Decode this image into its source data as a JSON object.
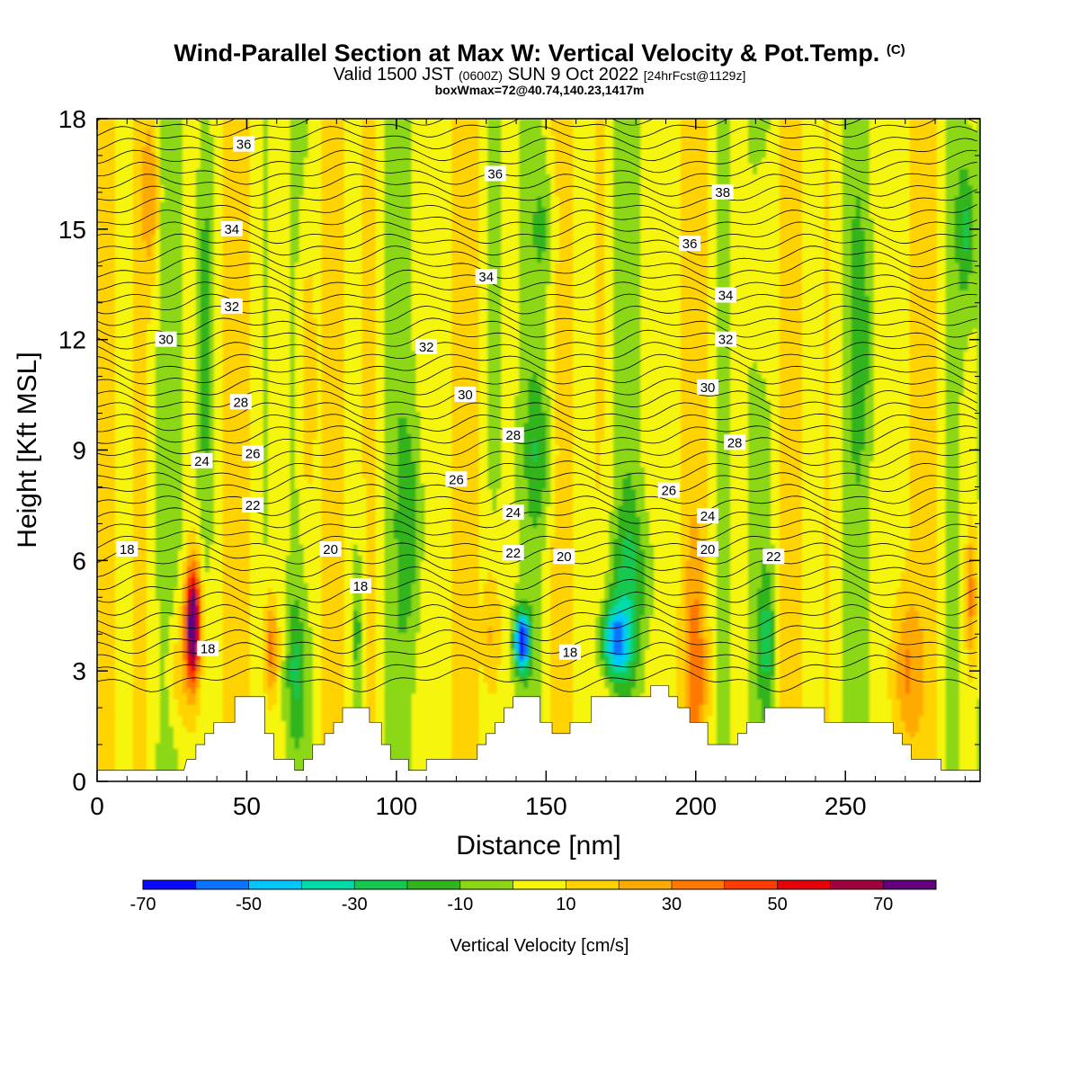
{
  "title": {
    "main": "Wind-Parallel Section at Max W: Vertical Velocity & Pot.Temp.",
    "copyright": "(C)",
    "valid_prefix": "Valid 1500 JST",
    "valid_utc": "(0600Z)",
    "valid_date": "SUN 9 Oct 2022",
    "forecast": "[24hrFcst@1129z]",
    "box": "boxWmax=72@40.74,140.23,1417m"
  },
  "chart_data": {
    "type": "heatmap",
    "xlabel": "Distance [nm]",
    "ylabel": "Height [Kft MSL]",
    "xlim": [
      0,
      295
    ],
    "ylim": [
      0,
      18
    ],
    "xticks": [
      0,
      50,
      100,
      150,
      200,
      250
    ],
    "yticks": [
      0,
      3,
      6,
      9,
      12,
      15,
      18
    ],
    "colorbar": {
      "label": "Vertical Velocity [cm/s]",
      "bounds": [
        -70,
        -60,
        -50,
        -40,
        -30,
        -20,
        -10,
        0,
        10,
        20,
        30,
        40,
        50,
        60,
        70,
        80
      ],
      "tick_labels": [
        -70,
        -50,
        -30,
        -10,
        10,
        30,
        50,
        70
      ],
      "colors": [
        "#0a0aff",
        "#0a73ff",
        "#00c8ff",
        "#00dcaa",
        "#14c850",
        "#32b41e",
        "#8cd714",
        "#f5f50a",
        "#ffd200",
        "#ffaa00",
        "#ff7800",
        "#ff3c00",
        "#e6000a",
        "#a0003c",
        "#64007d"
      ]
    },
    "contour_variable": "Potential temperature (C)",
    "contour_labels": [
      {
        "value": 36,
        "x": 49,
        "y": 17.3
      },
      {
        "value": 36,
        "x": 133,
        "y": 16.5
      },
      {
        "value": 38,
        "x": 209,
        "y": 16.0
      },
      {
        "value": 34,
        "x": 45,
        "y": 15.0
      },
      {
        "value": 36,
        "x": 198,
        "y": 14.6
      },
      {
        "value": 34,
        "x": 130,
        "y": 13.7
      },
      {
        "value": 34,
        "x": 210,
        "y": 13.2
      },
      {
        "value": 32,
        "x": 45,
        "y": 12.9
      },
      {
        "value": 32,
        "x": 110,
        "y": 11.8
      },
      {
        "value": 32,
        "x": 210,
        "y": 12.0
      },
      {
        "value": 30,
        "x": 23,
        "y": 12.0
      },
      {
        "value": 30,
        "x": 123,
        "y": 10.5
      },
      {
        "value": 30,
        "x": 204,
        "y": 10.7
      },
      {
        "value": 28,
        "x": 48,
        "y": 10.3
      },
      {
        "value": 28,
        "x": 139,
        "y": 9.4
      },
      {
        "value": 28,
        "x": 213,
        "y": 9.2
      },
      {
        "value": 26,
        "x": 52,
        "y": 8.9
      },
      {
        "value": 26,
        "x": 120,
        "y": 8.2
      },
      {
        "value": 26,
        "x": 191,
        "y": 7.9
      },
      {
        "value": 24,
        "x": 35,
        "y": 8.7
      },
      {
        "value": 24,
        "x": 139,
        "y": 7.3
      },
      {
        "value": 24,
        "x": 204,
        "y": 7.2
      },
      {
        "value": 22,
        "x": 52,
        "y": 7.5
      },
      {
        "value": 22,
        "x": 139,
        "y": 6.2
      },
      {
        "value": 22,
        "x": 226,
        "y": 6.1
      },
      {
        "value": 20,
        "x": 78,
        "y": 6.3
      },
      {
        "value": 20,
        "x": 156,
        "y": 6.1
      },
      {
        "value": 20,
        "x": 204,
        "y": 6.3
      },
      {
        "value": 18,
        "x": 10,
        "y": 6.3
      },
      {
        "value": 18,
        "x": 88,
        "y": 5.3
      },
      {
        "value": 18,
        "x": 158,
        "y": 3.5
      },
      {
        "value": 18,
        "x": 37,
        "y": 3.6
      }
    ],
    "terrain": [
      [
        0,
        0.3
      ],
      [
        29,
        0.3
      ],
      [
        30,
        0.6
      ],
      [
        33,
        0.6
      ],
      [
        33,
        1.0
      ],
      [
        36,
        1.0
      ],
      [
        36,
        1.3
      ],
      [
        39,
        1.3
      ],
      [
        39,
        1.6
      ],
      [
        46,
        1.6
      ],
      [
        46,
        2.3
      ],
      [
        56,
        2.3
      ],
      [
        56,
        1.3
      ],
      [
        59,
        1.3
      ],
      [
        59,
        0.6
      ],
      [
        66,
        0.6
      ],
      [
        66,
        0.3
      ],
      [
        69,
        0.3
      ],
      [
        69,
        0.6
      ],
      [
        72,
        0.6
      ],
      [
        72,
        1.0
      ],
      [
        76,
        1.0
      ],
      [
        76,
        1.3
      ],
      [
        79,
        1.3
      ],
      [
        79,
        1.6
      ],
      [
        82,
        1.6
      ],
      [
        82,
        2.0
      ],
      [
        91,
        2.0
      ],
      [
        91,
        1.6
      ],
      [
        95,
        1.6
      ],
      [
        95,
        1.0
      ],
      [
        98,
        1.0
      ],
      [
        98,
        0.6
      ],
      [
        104,
        0.6
      ],
      [
        104,
        0.3
      ],
      [
        110,
        0.3
      ],
      [
        110,
        0.6
      ],
      [
        127,
        0.6
      ],
      [
        127,
        1.0
      ],
      [
        130,
        1.0
      ],
      [
        130,
        1.3
      ],
      [
        133,
        1.3
      ],
      [
        133,
        1.6
      ],
      [
        136,
        1.6
      ],
      [
        136,
        2.0
      ],
      [
        139,
        2.0
      ],
      [
        139,
        2.3
      ],
      [
        148,
        2.3
      ],
      [
        148,
        1.6
      ],
      [
        152,
        1.6
      ],
      [
        152,
        1.3
      ],
      [
        158,
        1.3
      ],
      [
        158,
        1.6
      ],
      [
        165,
        1.6
      ],
      [
        165,
        2.3
      ],
      [
        185,
        2.3
      ],
      [
        185,
        2.6
      ],
      [
        191,
        2.6
      ],
      [
        191,
        2.3
      ],
      [
        194,
        2.3
      ],
      [
        194,
        2.0
      ],
      [
        198,
        2.0
      ],
      [
        198,
        1.6
      ],
      [
        204,
        1.6
      ],
      [
        204,
        1.0
      ],
      [
        214,
        1.0
      ],
      [
        214,
        1.3
      ],
      [
        217,
        1.3
      ],
      [
        217,
        1.6
      ],
      [
        223,
        1.6
      ],
      [
        223,
        2.0
      ],
      [
        243,
        2.0
      ],
      [
        243,
        1.6
      ],
      [
        266,
        1.6
      ],
      [
        266,
        1.3
      ],
      [
        269,
        1.3
      ],
      [
        269,
        1.0
      ],
      [
        272,
        1.0
      ],
      [
        272,
        0.6
      ],
      [
        282,
        0.6
      ],
      [
        282,
        0.3
      ],
      [
        295,
        0.3
      ]
    ]
  }
}
